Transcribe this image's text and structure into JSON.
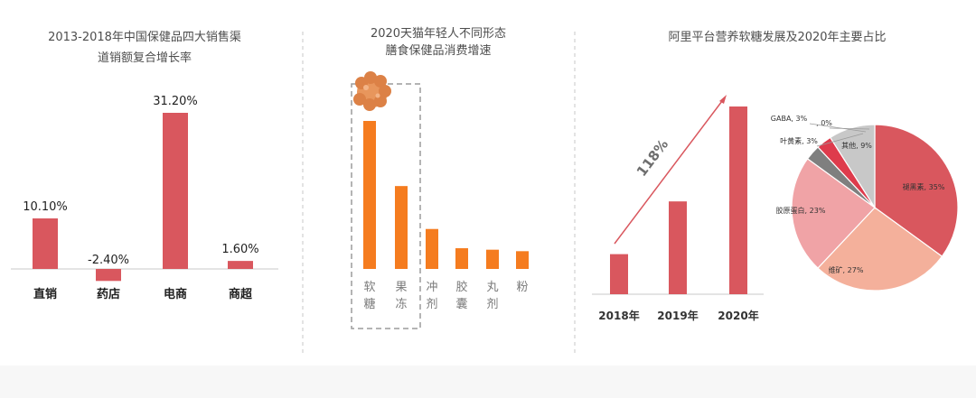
{
  "colors": {
    "red": "#d9575e",
    "orange": "#f57c1f",
    "grey": "#8a8a8a",
    "divider": "#c7c7c7"
  },
  "chart_data": [
    {
      "type": "bar",
      "title_lines": [
        "2013-2018年中国保健品四大销售渠",
        "道销额复合增长率"
      ],
      "categories": [
        "直销",
        "药店",
        "电商",
        "商超"
      ],
      "values": [
        10.1,
        -2.4,
        31.2,
        1.6
      ],
      "value_labels": [
        "10.10%",
        "-2.40%",
        "31.20%",
        "1.60%"
      ],
      "ylim": [
        -4,
        34
      ],
      "grid": false,
      "color": "#d9575e"
    },
    {
      "type": "bar",
      "title_lines": [
        "2020天猫年轻人不同形态",
        "膳食保健品消费增速"
      ],
      "categories": [
        "软糖",
        "果冻",
        "冲剂",
        "胶囊",
        "丸剂",
        "粉"
      ],
      "values": [
        100,
        56,
        27,
        14,
        13,
        12
      ],
      "ylim": [
        0,
        118
      ],
      "grid": false,
      "color": "#f57c1f",
      "annotation": "highlight-box-on-first-two"
    },
    {
      "type": "bar",
      "title_lines": [
        "阿里平台营养软糖发展及2020年主要占比"
      ],
      "categories": [
        "2018年",
        "2019年",
        "2020年"
      ],
      "values": [
        19,
        44,
        89
      ],
      "ylim": [
        0,
        100
      ],
      "grid": false,
      "color": "#d9575e",
      "annotation": "118%"
    },
    {
      "type": "pie",
      "slices": [
        {
          "label": "褪黑素, 35%",
          "value": 35,
          "color": "#d9575e"
        },
        {
          "label": "维矿, 27%",
          "value": 27,
          "color": "#f4b09b"
        },
        {
          "label": "胶原蛋白, 23%",
          "value": 23,
          "color": "#f0a3a6"
        },
        {
          "label": "叶黄素, 3%",
          "value": 3,
          "color": "#7f7f7f"
        },
        {
          "label": "GABA, 3%",
          "value": 3,
          "color": "#de3b4c"
        },
        {
          "label": ", 0%",
          "value": 0,
          "color": "#cccccc"
        },
        {
          "label": "其他, 9%",
          "value": 9,
          "color": "#c8c8c8"
        }
      ]
    }
  ]
}
